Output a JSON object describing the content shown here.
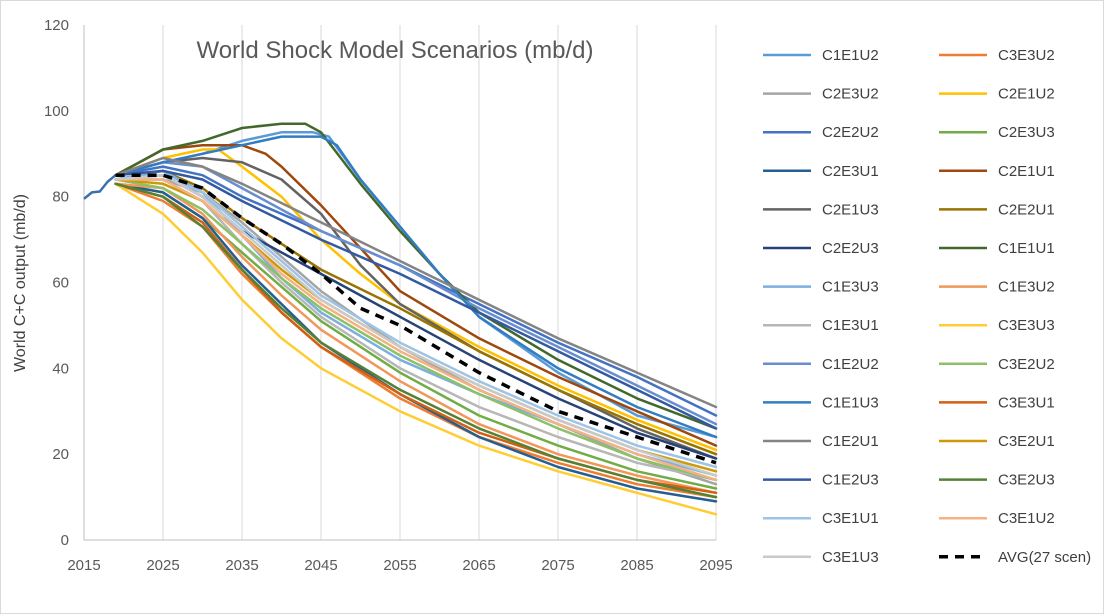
{
  "chart_data": {
    "type": "line",
    "title": "World Shock Model Scenarios (mb/d)",
    "xlabel": "",
    "ylabel": "World C+C output (mb/d)",
    "xlim": [
      2015,
      2095
    ],
    "ylim": [
      0,
      120
    ],
    "x_ticks": [
      2015,
      2025,
      2035,
      2045,
      2055,
      2065,
      2075,
      2085,
      2095
    ],
    "y_ticks": [
      0,
      20,
      40,
      60,
      80,
      100,
      120
    ],
    "grid": "vertical",
    "legend_position": "right",
    "history": {
      "x": [
        2015,
        2016,
        2017,
        2018,
        2019
      ],
      "y": [
        79.5,
        81,
        81.2,
        83.5,
        85
      ]
    },
    "series": [
      {
        "name": "C1E1U2",
        "color": "#5b9bd5",
        "dash": false,
        "x": [
          2019,
          2025,
          2030,
          2035,
          2040,
          2044,
          2046,
          2050,
          2055,
          2060,
          2065,
          2075,
          2085,
          2095
        ],
        "y": [
          85,
          88,
          90,
          93,
          95,
          95,
          94,
          84,
          73,
          62,
          52,
          39,
          29,
          24
        ]
      },
      {
        "name": "C3E3U2",
        "color": "#ed7d31",
        "dash": false,
        "x": [
          2019,
          2025,
          2030,
          2035,
          2040,
          2045,
          2055,
          2065,
          2075,
          2085,
          2095
        ],
        "y": [
          83,
          79,
          73,
          62,
          53,
          45,
          33,
          24,
          18,
          13,
          10
        ]
      },
      {
        "name": "C2E3U2",
        "color": "#a5a5a5",
        "dash": false,
        "x": [
          2019,
          2025,
          2030,
          2035,
          2040,
          2045,
          2055,
          2065,
          2075,
          2085,
          2095
        ],
        "y": [
          84,
          84,
          81,
          74,
          66,
          58,
          45,
          35,
          27,
          19,
          13
        ]
      },
      {
        "name": "C2E1U2",
        "color": "#ffc000",
        "dash": false,
        "x": [
          2019,
          2025,
          2030,
          2032,
          2035,
          2040,
          2045,
          2050,
          2055,
          2065,
          2075,
          2085,
          2095
        ],
        "y": [
          85,
          89,
          91,
          91,
          87,
          80,
          70,
          62,
          55,
          45,
          36,
          28,
          21
        ]
      },
      {
        "name": "C2E2U2",
        "color": "#4472c4",
        "dash": false,
        "x": [
          2019,
          2025,
          2030,
          2035,
          2045,
          2055,
          2065,
          2075,
          2085,
          2095
        ],
        "y": [
          85,
          87,
          85,
          80,
          72,
          64,
          55,
          46,
          38,
          29
        ]
      },
      {
        "name": "C2E3U3",
        "color": "#70ad47",
        "dash": false,
        "x": [
          2019,
          2025,
          2030,
          2035,
          2040,
          2045,
          2055,
          2065,
          2075,
          2085,
          2095
        ],
        "y": [
          83,
          81,
          75,
          67,
          59,
          51,
          39,
          29,
          22,
          16,
          12
        ]
      },
      {
        "name": "C2E3U1",
        "color": "#255e91",
        "dash": false,
        "x": [
          2019,
          2025,
          2030,
          2035,
          2040,
          2045,
          2055,
          2065,
          2075,
          2085,
          2095
        ],
        "y": [
          83,
          81,
          75,
          64,
          55,
          46,
          34,
          24,
          17,
          12,
          9
        ]
      },
      {
        "name": "C2E1U1",
        "color": "#9e480e",
        "dash": false,
        "x": [
          2019,
          2025,
          2030,
          2035,
          2038,
          2040,
          2045,
          2050,
          2055,
          2065,
          2075,
          2085,
          2095
        ],
        "y": [
          85,
          91,
          92,
          92,
          90,
          87,
          78,
          68,
          58,
          47,
          38,
          30,
          22
        ]
      },
      {
        "name": "C2E1U3",
        "color": "#636363",
        "dash": false,
        "x": [
          2019,
          2025,
          2030,
          2035,
          2040,
          2045,
          2050,
          2055,
          2065,
          2075,
          2085,
          2095
        ],
        "y": [
          85,
          88,
          89,
          88,
          84,
          76,
          64,
          55,
          44,
          35,
          26,
          19
        ]
      },
      {
        "name": "C2E2U1",
        "color": "#997300",
        "dash": false,
        "x": [
          2019,
          2025,
          2030,
          2035,
          2045,
          2055,
          2065,
          2075,
          2085,
          2095
        ],
        "y": [
          84,
          86,
          82,
          75,
          63,
          54,
          44,
          35,
          27,
          20
        ]
      },
      {
        "name": "C2E2U3",
        "color": "#264478",
        "dash": false,
        "x": [
          2019,
          2025,
          2030,
          2035,
          2045,
          2055,
          2065,
          2075,
          2085,
          2095
        ],
        "y": [
          84,
          85,
          80,
          72,
          62,
          52,
          42,
          33,
          25,
          19
        ]
      },
      {
        "name": "C1E1U1",
        "color": "#43682b",
        "dash": false,
        "x": [
          2019,
          2025,
          2030,
          2035,
          2040,
          2043,
          2045,
          2050,
          2055,
          2060,
          2065,
          2075,
          2085,
          2095
        ],
        "y": [
          85,
          91,
          93,
          96,
          97,
          97,
          95,
          83,
          72,
          62,
          53,
          42,
          33,
          26
        ]
      },
      {
        "name": "C1E3U3",
        "color": "#7cafdd",
        "dash": false,
        "x": [
          2019,
          2025,
          2030,
          2035,
          2040,
          2045,
          2055,
          2065,
          2075,
          2085,
          2095
        ],
        "y": [
          84,
          86,
          81,
          71,
          61,
          53,
          42,
          34,
          27,
          20,
          15
        ]
      },
      {
        "name": "C1E3U2",
        "color": "#f1975a",
        "dash": false,
        "x": [
          2019,
          2025,
          2030,
          2035,
          2040,
          2045,
          2055,
          2065,
          2075,
          2085,
          2095
        ],
        "y": [
          83,
          82,
          76,
          66,
          57,
          49,
          37,
          27,
          20,
          15,
          11
        ]
      },
      {
        "name": "C1E3U1",
        "color": "#b7b7b7",
        "dash": false,
        "x": [
          2019,
          2025,
          2030,
          2035,
          2040,
          2045,
          2055,
          2065,
          2075,
          2085,
          2095
        ],
        "y": [
          84,
          84,
          79,
          69,
          60,
          52,
          40,
          31,
          24,
          18,
          14
        ]
      },
      {
        "name": "C3E3U3",
        "color": "#ffcd33",
        "dash": false,
        "x": [
          2019,
          2025,
          2030,
          2035,
          2040,
          2045,
          2055,
          2065,
          2075,
          2085,
          2095
        ],
        "y": [
          83,
          76,
          67,
          56,
          47,
          40,
          30,
          22,
          16,
          11,
          6
        ]
      },
      {
        "name": "C1E2U2",
        "color": "#698ed0",
        "dash": false,
        "x": [
          2019,
          2025,
          2030,
          2035,
          2040,
          2045,
          2055,
          2065,
          2075,
          2085,
          2095
        ],
        "y": [
          85,
          88,
          87,
          82,
          77,
          72,
          64,
          54,
          45,
          36,
          27
        ]
      },
      {
        "name": "C3E2U2",
        "color": "#8cc168",
        "dash": false,
        "x": [
          2019,
          2025,
          2030,
          2035,
          2040,
          2045,
          2055,
          2065,
          2075,
          2085,
          2095
        ],
        "y": [
          84,
          82,
          77,
          69,
          61,
          54,
          43,
          34,
          26,
          19,
          14
        ]
      },
      {
        "name": "C1E1U3",
        "color": "#327dc2",
        "dash": false,
        "x": [
          2019,
          2025,
          2030,
          2035,
          2040,
          2045,
          2047,
          2050,
          2055,
          2060,
          2065,
          2075,
          2085,
          2095
        ],
        "y": [
          85,
          88,
          90,
          92,
          94,
          94,
          92,
          84,
          73,
          62,
          52,
          40,
          31,
          24
        ]
      },
      {
        "name": "C3E3U1",
        "color": "#d26012",
        "dash": false,
        "x": [
          2019,
          2025,
          2030,
          2035,
          2040,
          2045,
          2055,
          2065,
          2075,
          2085,
          2095
        ],
        "y": [
          83,
          80,
          74,
          63,
          53,
          45,
          34,
          25,
          19,
          14,
          11
        ]
      },
      {
        "name": "C1E2U1",
        "color": "#848484",
        "dash": false,
        "x": [
          2019,
          2025,
          2030,
          2035,
          2045,
          2055,
          2065,
          2075,
          2085,
          2095
        ],
        "y": [
          85,
          89,
          87,
          83,
          74,
          65,
          56,
          47,
          39,
          31
        ]
      },
      {
        "name": "C3E2U1",
        "color": "#cc9a06",
        "dash": false,
        "x": [
          2019,
          2025,
          2030,
          2035,
          2040,
          2045,
          2055,
          2065,
          2075,
          2085,
          2095
        ],
        "y": [
          84,
          83,
          79,
          71,
          63,
          56,
          45,
          36,
          28,
          21,
          16
        ]
      },
      {
        "name": "C1E2U3",
        "color": "#335aa1",
        "dash": false,
        "x": [
          2019,
          2025,
          2030,
          2035,
          2045,
          2055,
          2065,
          2075,
          2085,
          2095
        ],
        "y": [
          85,
          86,
          84,
          79,
          70,
          62,
          53,
          44,
          35,
          26
        ]
      },
      {
        "name": "C3E2U3",
        "color": "#548235",
        "dash": false,
        "x": [
          2019,
          2025,
          2030,
          2035,
          2040,
          2045,
          2055,
          2065,
          2075,
          2085,
          2095
        ],
        "y": [
          83,
          80,
          73,
          63,
          54,
          46,
          35,
          26,
          19,
          14,
          10
        ]
      },
      {
        "name": "C3E1U1",
        "color": "#9dc3e6",
        "dash": false,
        "x": [
          2019,
          2025,
          2030,
          2035,
          2040,
          2045,
          2055,
          2065,
          2075,
          2085,
          2095
        ],
        "y": [
          84,
          85,
          81,
          73,
          65,
          57,
          46,
          37,
          29,
          22,
          17
        ]
      },
      {
        "name": "C3E1U2",
        "color": "#f4b183",
        "dash": false,
        "x": [
          2019,
          2025,
          2030,
          2035,
          2040,
          2045,
          2055,
          2065,
          2075,
          2085,
          2095
        ],
        "y": [
          84,
          84,
          79,
          71,
          62,
          55,
          44,
          35,
          27,
          20,
          14
        ]
      },
      {
        "name": "C3E1U3",
        "color": "#c9c9c9",
        "dash": false,
        "x": [
          2019,
          2025,
          2030,
          2035,
          2040,
          2045,
          2055,
          2065,
          2075,
          2085,
          2095
        ],
        "y": [
          84,
          85,
          80,
          72,
          64,
          56,
          45,
          36,
          28,
          21,
          15
        ]
      },
      {
        "name": "AVG(27 scen)",
        "color": "#000000",
        "dash": true,
        "x": [
          2019,
          2025,
          2030,
          2035,
          2040,
          2045,
          2050,
          2055,
          2065,
          2075,
          2085,
          2095
        ],
        "y": [
          85,
          85,
          82,
          75,
          69,
          62,
          54,
          50,
          39,
          30,
          24,
          18
        ]
      }
    ]
  }
}
